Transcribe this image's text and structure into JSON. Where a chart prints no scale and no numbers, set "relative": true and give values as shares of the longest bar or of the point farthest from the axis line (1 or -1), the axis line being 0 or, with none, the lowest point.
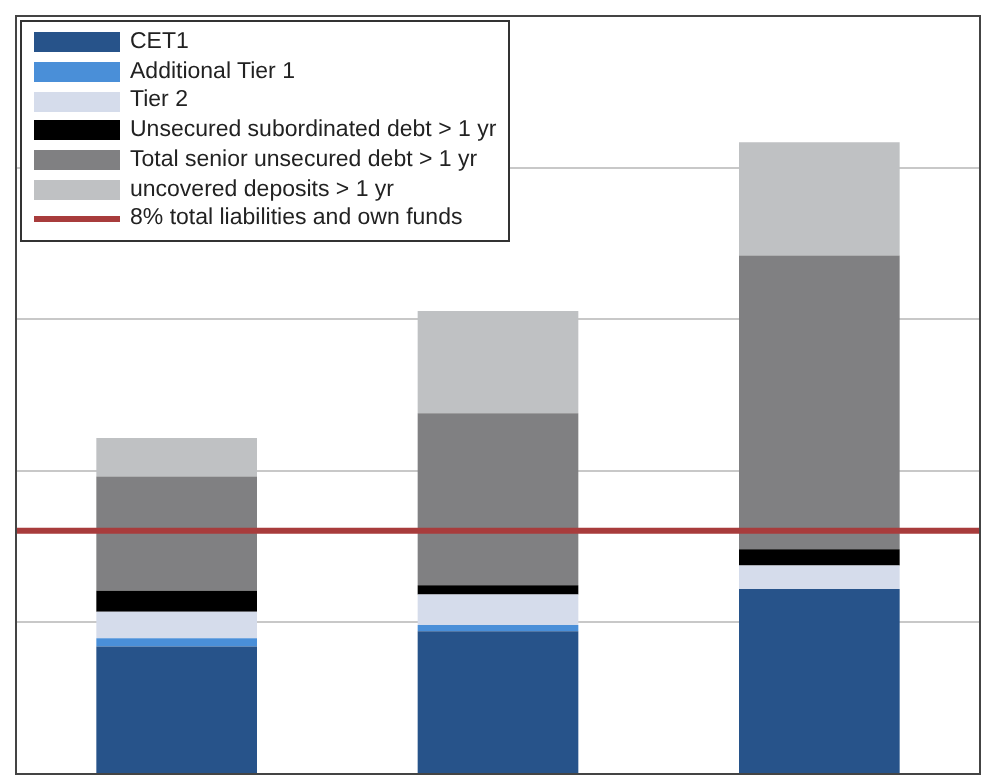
{
  "chart_data": {
    "type": "bar",
    "stacked": true,
    "relative": true,
    "categories": [
      null,
      null,
      null
    ],
    "series": [
      {
        "name": "CET1",
        "color": "#27538a",
        "values": [
          0.202,
          0.226,
          0.293
        ]
      },
      {
        "name": "Additional Tier 1",
        "color": "#4a8fd8",
        "values": [
          0.013,
          0.01,
          0
        ]
      },
      {
        "name": "Tier 2",
        "color": "#d5dceb",
        "values": [
          0.042,
          0.048,
          0.037
        ]
      },
      {
        "name": "Unsecured subordinated debt > 1 yr",
        "color": "#000000",
        "values": [
          0.033,
          0.015,
          0.026
        ]
      },
      {
        "name": "Total senior unsecured debt > 1 yr",
        "color": "#808082",
        "values": [
          0.181,
          0.272,
          0.465
        ]
      },
      {
        "name": "uncovered deposits > 1 yr",
        "color": "#bfc1c3",
        "values": [
          0.061,
          0.162,
          0.179
        ]
      }
    ],
    "ref_lines": [
      {
        "axis": "y",
        "value": 0.385,
        "label": "8%  total liabilities and own funds",
        "color": "#a83c3c"
      }
    ],
    "grid": "y",
    "legend": "top left"
  }
}
